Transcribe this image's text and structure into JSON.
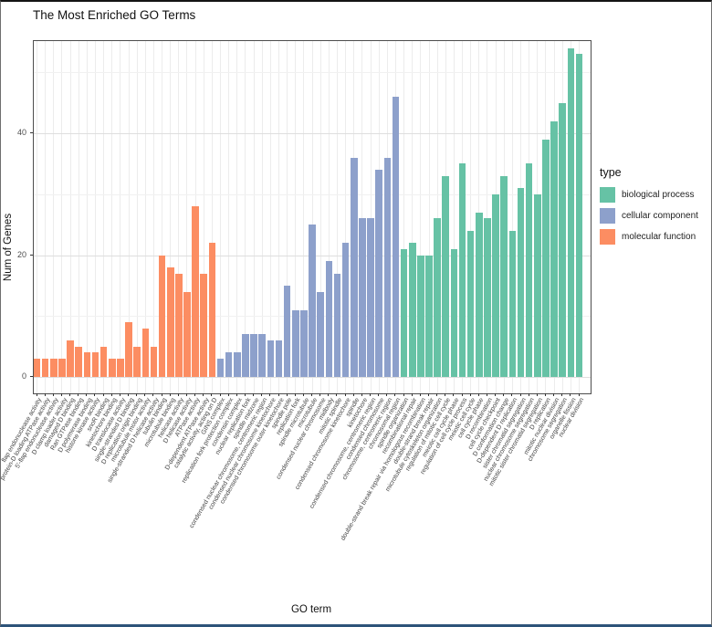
{
  "chart": {
    "title": "The Most Enriched GO Terms",
    "x_axis_title": "GO term",
    "y_axis_title": "Num of Genes"
  },
  "chart_data": {
    "type": "bar",
    "title": "The Most Enriched GO Terms",
    "xlabel": "GO term",
    "ylabel": "Num of Genes",
    "ylim": [
      0,
      55
    ],
    "y_ticks": [
      0,
      20,
      40
    ],
    "y_minor_gridlines": [
      10,
      30,
      50
    ],
    "grid": true,
    "legend_position": "right",
    "legend": {
      "title": "type",
      "entries": [
        {
          "label": "biological process",
          "color": "#66C2A5"
        },
        {
          "label": "cellular component",
          "color": "#8DA0CB"
        },
        {
          "label": "molecular function",
          "color": "#FC8D62"
        }
      ]
    },
    "items": [
      {
        "term": "flap endonuclease activity",
        "genes": 3,
        "type": "molecular function"
      },
      {
        "term": "protein-D loading ATPase activity",
        "genes": 3,
        "type": "molecular function"
      },
      {
        "term": "5'-flap endonuclease activity",
        "genes": 3,
        "type": "molecular function"
      },
      {
        "term": "D clamp loader activity",
        "genes": 3,
        "type": "molecular function"
      },
      {
        "term": "damaged D binding",
        "genes": 6,
        "type": "molecular function"
      },
      {
        "term": "Ran GTPase binding",
        "genes": 5,
        "type": "molecular function"
      },
      {
        "term": "D polymerase binding",
        "genes": 4,
        "type": "molecular function"
      },
      {
        "term": "histone kinase activity",
        "genes": 4,
        "type": "molecular function"
      },
      {
        "term": "snoR binding",
        "genes": 5,
        "type": "molecular function"
      },
      {
        "term": "kinetochore binding",
        "genes": 3,
        "type": "molecular function"
      },
      {
        "term": "D translocase activity",
        "genes": 3,
        "type": "molecular function"
      },
      {
        "term": "single-stranded D binding",
        "genes": 9,
        "type": "molecular function"
      },
      {
        "term": "D replication origin binding",
        "genes": 5,
        "type": "molecular function"
      },
      {
        "term": "microtubule motor activity",
        "genes": 8,
        "type": "molecular function"
      },
      {
        "term": "single-stranded D helicase activity",
        "genes": 5,
        "type": "molecular function"
      },
      {
        "term": "tubulin binding",
        "genes": 20,
        "type": "molecular function"
      },
      {
        "term": "microtubule binding",
        "genes": 18,
        "type": "molecular function"
      },
      {
        "term": "helicase activity",
        "genes": 17,
        "type": "molecular function"
      },
      {
        "term": "D helicase activity",
        "genes": 14,
        "type": "molecular function"
      },
      {
        "term": "ATPase activity",
        "genes": 28,
        "type": "molecular function"
      },
      {
        "term": "D-dependent ATPase activity",
        "genes": 17,
        "type": "molecular function"
      },
      {
        "term": "catalytic activity, acting on D",
        "genes": 22,
        "type": "molecular function"
      },
      {
        "term": "GINS complex",
        "genes": 3,
        "type": "cellular component"
      },
      {
        "term": "replication fork protection complex",
        "genes": 4,
        "type": "cellular component"
      },
      {
        "term": "condensin complex",
        "genes": 4,
        "type": "cellular component"
      },
      {
        "term": "nuclear replication fork",
        "genes": 7,
        "type": "cellular component"
      },
      {
        "term": "spindle midzone",
        "genes": 7,
        "type": "cellular component"
      },
      {
        "term": "condensed nuclear chromosome, centromeric region",
        "genes": 7,
        "type": "cellular component"
      },
      {
        "term": "condensed nuclear chromosome kinetochore",
        "genes": 6,
        "type": "cellular component"
      },
      {
        "term": "condensed chromosome outer kinetochore",
        "genes": 6,
        "type": "cellular component"
      },
      {
        "term": "spindle pole",
        "genes": 15,
        "type": "cellular component"
      },
      {
        "term": "replication fork",
        "genes": 11,
        "type": "cellular component"
      },
      {
        "term": "spindle microtubule",
        "genes": 11,
        "type": "cellular component"
      },
      {
        "term": "microtubule",
        "genes": 25,
        "type": "cellular component"
      },
      {
        "term": "condensed nuclear chromosome",
        "genes": 14,
        "type": "cellular component"
      },
      {
        "term": "midbody",
        "genes": 19,
        "type": "cellular component"
      },
      {
        "term": "mitotic spindle",
        "genes": 17,
        "type": "cellular component"
      },
      {
        "term": "condensed chromosome kinetochore",
        "genes": 22,
        "type": "cellular component"
      },
      {
        "term": "spindle",
        "genes": 36,
        "type": "cellular component"
      },
      {
        "term": "kinetochore",
        "genes": 26,
        "type": "cellular component"
      },
      {
        "term": "condensed chromosome, centromeric region",
        "genes": 26,
        "type": "cellular component"
      },
      {
        "term": "condensed chromosome",
        "genes": 34,
        "type": "cellular component"
      },
      {
        "term": "chromosome, centromeric region",
        "genes": 36,
        "type": "cellular component"
      },
      {
        "term": "chromosomal region",
        "genes": 46,
        "type": "cellular component"
      },
      {
        "term": "spindle organization",
        "genes": 21,
        "type": "biological process"
      },
      {
        "term": "recombinational repair",
        "genes": 22,
        "type": "biological process"
      },
      {
        "term": "double-strand break repair via homologous recombination",
        "genes": 20,
        "type": "biological process"
      },
      {
        "term": "double-strand break repair",
        "genes": 20,
        "type": "biological process"
      },
      {
        "term": "microtubule cytoskeleton organization",
        "genes": 26,
        "type": "biological process"
      },
      {
        "term": "regulation of mitotic cell cycle",
        "genes": 33,
        "type": "biological process"
      },
      {
        "term": "meiotic cell cycle phase",
        "genes": 21,
        "type": "biological process"
      },
      {
        "term": "regulation of cell cycle process",
        "genes": 35,
        "type": "biological process"
      },
      {
        "term": "meiotic cell cycle",
        "genes": 24,
        "type": "biological process"
      },
      {
        "term": "cell cycle phase",
        "genes": 27,
        "type": "biological process"
      },
      {
        "term": "D recombination",
        "genes": 26,
        "type": "biological process"
      },
      {
        "term": "cell cycle checkpoint",
        "genes": 30,
        "type": "biological process"
      },
      {
        "term": "D conformation change",
        "genes": 33,
        "type": "biological process"
      },
      {
        "term": "D-dependent D replication",
        "genes": 24,
        "type": "biological process"
      },
      {
        "term": "sister chromatid segregation",
        "genes": 31,
        "type": "biological process"
      },
      {
        "term": "nuclear chromosome segregation",
        "genes": 35,
        "type": "biological process"
      },
      {
        "term": "mitotic sister chromatid segregation",
        "genes": 30,
        "type": "biological process"
      },
      {
        "term": "D replication",
        "genes": 39,
        "type": "biological process"
      },
      {
        "term": "mitotic nuclear division",
        "genes": 42,
        "type": "biological process"
      },
      {
        "term": "chromosome segregation",
        "genes": 45,
        "type": "biological process"
      },
      {
        "term": "organelle fission",
        "genes": 54,
        "type": "biological process"
      },
      {
        "term": "nuclear division",
        "genes": 53,
        "type": "biological process"
      }
    ]
  }
}
